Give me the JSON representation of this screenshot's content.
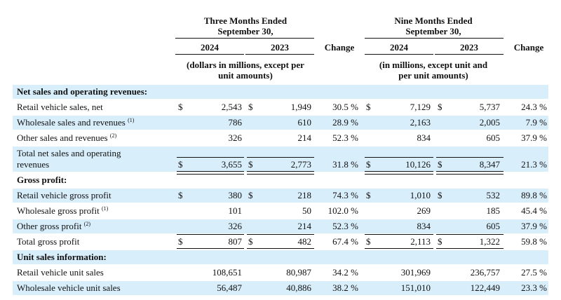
{
  "header": {
    "three_months": [
      "Three Months Ended",
      "September 30,"
    ],
    "nine_months": [
      "Nine Months Ended",
      "September 30,"
    ],
    "y2024": "2024",
    "y2023": "2023",
    "change": "Change",
    "units_three": [
      "(dollars in millions, except per",
      "unit amounts)"
    ],
    "units_nine": [
      "(in millions, except unit and",
      "per unit amounts)"
    ]
  },
  "dollar": "$",
  "rows": [
    {
      "label": "Net sales and operating revenues:",
      "section": true
    },
    {
      "label": "Retail vehicle sales, net",
      "q24": "2,543",
      "q23": "1,949",
      "qchg": "30.5 %",
      "n24": "7,129",
      "n23": "5,737",
      "nchg": "24.3 %",
      "dollars": true
    },
    {
      "label": "Wholesale sales and revenues",
      "sup": "(1)",
      "q24": "786",
      "q23": "610",
      "qchg": "28.9 %",
      "n24": "2,163",
      "n23": "2,005",
      "nchg": "7.9 %"
    },
    {
      "label": "Other sales and revenues",
      "sup": "(2)",
      "q24": "326",
      "q23": "214",
      "qchg": "52.3 %",
      "n24": "834",
      "n23": "605",
      "nchg": "37.9 %"
    },
    {
      "label": "Total net sales and operating",
      "label2": "revenues",
      "q24": "3,655",
      "q23": "2,773",
      "qchg": "31.8 %",
      "n24": "10,126",
      "n23": "8,347",
      "nchg": "21.3 %",
      "dollars": true,
      "total": true
    },
    {
      "label": "Gross profit:",
      "section": true
    },
    {
      "label": "Retail vehicle gross profit",
      "q24": "380",
      "q23": "218",
      "qchg": "74.3 %",
      "n24": "1,010",
      "n23": "532",
      "nchg": "89.8 %",
      "dollars": true
    },
    {
      "label": "Wholesale gross profit",
      "sup": "(1)",
      "q24": "101",
      "q23": "50",
      "qchg": "102.0 %",
      "n24": "269",
      "n23": "185",
      "nchg": "45.4 %"
    },
    {
      "label": "Other gross profit",
      "sup": "(2)",
      "q24": "326",
      "q23": "214",
      "qchg": "52.3 %",
      "n24": "834",
      "n23": "605",
      "nchg": "37.9 %"
    },
    {
      "label": "Total gross profit",
      "q24": "807",
      "q23": "482",
      "qchg": "67.4 %",
      "n24": "2,113",
      "n23": "1,322",
      "nchg": "59.8 %",
      "dollars": true,
      "total": true
    },
    {
      "label": "Unit sales information:",
      "section": true
    },
    {
      "label": "Retail vehicle unit sales",
      "q24": "108,651",
      "q23": "80,987",
      "qchg": "34.2 %",
      "n24": "301,969",
      "n23": "236,757",
      "nchg": "27.5 %"
    },
    {
      "label": "Wholesale vehicle unit sales",
      "q24": "56,487",
      "q23": "40,886",
      "qchg": "38.2 %",
      "n24": "151,010",
      "n23": "122,449",
      "nchg": "23.3 %"
    }
  ]
}
